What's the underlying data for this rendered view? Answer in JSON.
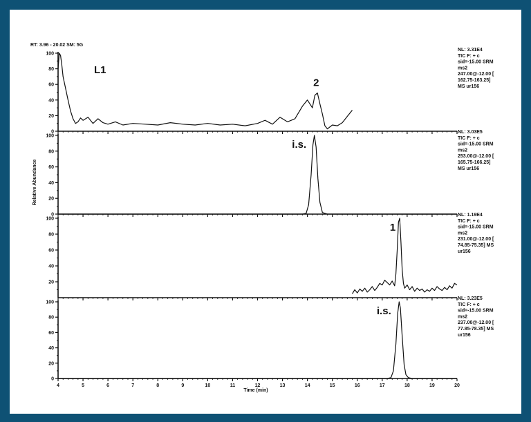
{
  "colors": {
    "frame_bg": "#0e5174",
    "page_bg": "#ffffff",
    "ink": "#111111"
  },
  "chart_data": {
    "type": "line",
    "header": "RT: 3.96 - 20.02   SM: 5G",
    "xlabel": "Time (min)",
    "ylabel": "Relative Abundance",
    "xlim": [
      4,
      20
    ],
    "x_ticks": [
      4,
      5,
      6,
      7,
      8,
      9,
      10,
      11,
      12,
      13,
      14,
      15,
      16,
      17,
      18,
      19,
      20
    ],
    "panels": [
      {
        "label": "L1",
        "ylim": [
          0,
          100
        ],
        "y_ticks": [
          0,
          20,
          40,
          60,
          80,
          100
        ],
        "info": [
          "NL: 3.31E4",
          "TIC F: + c",
          "sid=-15.00 SRM",
          "ms2",
          "247.00@-12.00 [",
          "162.75-163.25]",
          "MS ur156"
        ],
        "annotations": [
          {
            "text": "2",
            "x": 14.35,
            "y": 58
          }
        ],
        "series": [
          {
            "x": [
              4.0,
              4.05,
              4.1,
              4.15,
              4.2,
              4.3,
              4.4,
              4.5,
              4.6,
              4.7,
              4.8,
              4.9,
              5.0,
              5.2,
              5.4,
              5.6,
              5.8,
              6.0,
              6.3,
              6.6,
              7.0,
              7.5,
              8.0,
              8.5,
              9.0,
              9.5,
              10.0,
              10.5,
              11.0,
              11.5,
              12.0,
              12.3,
              12.6,
              12.9,
              13.2,
              13.5,
              13.8,
              14.0,
              14.1,
              14.2,
              14.3,
              14.4,
              14.5,
              14.6,
              14.7,
              14.8,
              15.0,
              15.2,
              15.4,
              15.6,
              15.8
            ],
            "y": [
              80,
              100,
              97,
              85,
              70,
              55,
              40,
              26,
              16,
              10,
              12,
              17,
              14,
              18,
              10,
              16,
              11,
              9,
              12,
              8,
              10,
              9,
              8,
              11,
              9,
              8,
              10,
              8,
              9,
              7,
              10,
              14,
              9,
              18,
              12,
              16,
              32,
              40,
              35,
              30,
              46,
              49,
              35,
              22,
              7,
              3,
              8,
              7,
              11,
              19,
              27
            ]
          }
        ]
      },
      {
        "label": "i.s.",
        "ylim": [
          0,
          100
        ],
        "y_ticks": [
          0,
          20,
          40,
          60,
          80,
          100
        ],
        "info": [
          "NL: 3.03E5",
          "TIC F: + c",
          "sid=-15.00 SRM",
          "ms2",
          "253.00@-12.00 [",
          "165.75-166.25]",
          "MS ur156"
        ],
        "series": [
          {
            "x": [
              4.0,
              13.8,
              13.95,
              14.05,
              14.15,
              14.22,
              14.28,
              14.35,
              14.42,
              14.5,
              14.6,
              14.8,
              20.0
            ],
            "y": [
              0,
              0,
              1,
              12,
              50,
              88,
              100,
              85,
              45,
              15,
              2,
              0,
              0
            ]
          }
        ]
      },
      {
        "label": "1",
        "ylim": [
          0,
          100
        ],
        "y_ticks": [
          20,
          40,
          60,
          80,
          100
        ],
        "info": [
          "NL: 1.19E4",
          "TIC F: + c",
          "sid=-15.00 SRM",
          "ms2",
          "231.00@-12.00 [",
          "74.85-75.35] MS",
          "ur156"
        ],
        "series": [
          {
            "x": [
              15.8,
              15.9,
              16.0,
              16.1,
              16.2,
              16.3,
              16.4,
              16.5,
              16.6,
              16.7,
              16.8,
              16.9,
              17.0,
              17.1,
              17.2,
              17.3,
              17.4,
              17.5,
              17.55,
              17.6,
              17.65,
              17.7,
              17.75,
              17.8,
              17.85,
              17.9,
              18.0,
              18.1,
              18.2,
              18.3,
              18.4,
              18.5,
              18.6,
              18.7,
              18.8,
              18.9,
              19.0,
              19.1,
              19.2,
              19.3,
              19.4,
              19.5,
              19.6,
              19.7,
              19.8,
              19.9,
              20.0
            ],
            "y": [
              5,
              10,
              6,
              11,
              8,
              12,
              7,
              10,
              14,
              9,
              13,
              18,
              16,
              22,
              19,
              16,
              21,
              15,
              30,
              60,
              95,
              100,
              70,
              35,
              18,
              12,
              16,
              10,
              14,
              8,
              12,
              9,
              11,
              7,
              10,
              8,
              12,
              9,
              14,
              11,
              9,
              13,
              10,
              15,
              12,
              18,
              16
            ]
          }
        ]
      },
      {
        "label": "i.s.",
        "ylim": [
          0,
          100
        ],
        "y_ticks": [
          0,
          20,
          40,
          60,
          80,
          100
        ],
        "info": [
          "NL: 3.23E5",
          "TIC F: + c",
          "sid=-15.00 SRM",
          "ms2",
          "237.00@-12.00 [",
          "77.85-78.35] MS",
          "ur156"
        ],
        "series": [
          {
            "x": [
              4.0,
              17.2,
              17.35,
              17.45,
              17.55,
              17.62,
              17.68,
              17.73,
              17.8,
              17.88,
              17.95,
              18.05,
              18.2,
              20.0
            ],
            "y": [
              0,
              0,
              1,
              10,
              45,
              85,
              100,
              92,
              55,
              18,
              5,
              1,
              0,
              0
            ]
          }
        ]
      }
    ]
  }
}
